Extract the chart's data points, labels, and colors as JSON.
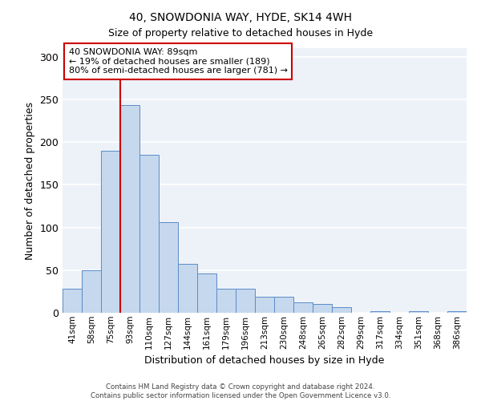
{
  "title": "40, SNOWDONIA WAY, HYDE, SK14 4WH",
  "subtitle": "Size of property relative to detached houses in Hyde",
  "xlabel": "Distribution of detached houses by size in Hyde",
  "ylabel": "Number of detached properties",
  "bar_color": "#c5d8ed",
  "bar_edge_color": "#5b8cc8",
  "categories": [
    "41sqm",
    "58sqm",
    "75sqm",
    "93sqm",
    "110sqm",
    "127sqm",
    "144sqm",
    "161sqm",
    "179sqm",
    "196sqm",
    "213sqm",
    "230sqm",
    "248sqm",
    "265sqm",
    "282sqm",
    "299sqm",
    "317sqm",
    "334sqm",
    "351sqm",
    "368sqm",
    "386sqm"
  ],
  "values": [
    28,
    50,
    190,
    243,
    185,
    106,
    57,
    46,
    28,
    28,
    19,
    19,
    12,
    10,
    7,
    0,
    2,
    0,
    2,
    0,
    2
  ],
  "vline_x_index": 3,
  "vline_color": "#cc0000",
  "annotation_lines": [
    "40 SNOWDONIA WAY: 89sqm",
    "← 19% of detached houses are smaller (189)",
    "80% of semi-detached houses are larger (781) →"
  ],
  "ylim": [
    0,
    310
  ],
  "yticks": [
    0,
    50,
    100,
    150,
    200,
    250,
    300
  ],
  "footer_line1": "Contains HM Land Registry data © Crown copyright and database right 2024.",
  "footer_line2": "Contains public sector information licensed under the Open Government Licence v3.0.",
  "bg_color": "#edf2f9"
}
